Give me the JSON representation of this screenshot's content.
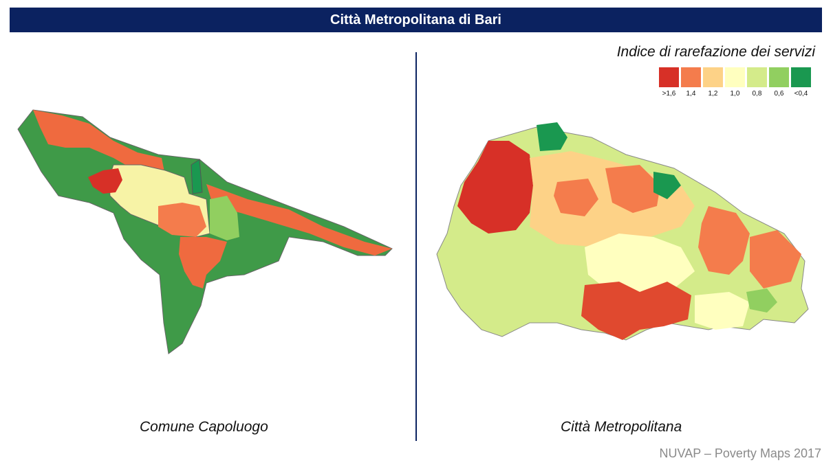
{
  "header": {
    "title": "Città Metropolitana di Bari"
  },
  "legend": {
    "title": "Indice di rarefazione dei servizi",
    "items": [
      {
        "label": ">1,6",
        "color": "#d73027"
      },
      {
        "label": "1,4",
        "color": "#f47c4c"
      },
      {
        "label": "1,2",
        "color": "#fdd287"
      },
      {
        "label": "1,0",
        "color": "#ffffbf"
      },
      {
        "label": "0,8",
        "color": "#d4eb8a"
      },
      {
        "label": "0,6",
        "color": "#91cf60"
      },
      {
        "label": "<0,4",
        "color": "#1a9850"
      }
    ]
  },
  "maps": {
    "left_caption": "Comune Capoluogo",
    "right_caption": "Città Metropolitana"
  },
  "footer": {
    "source": "NUVAP – Poverty Maps 2017"
  }
}
